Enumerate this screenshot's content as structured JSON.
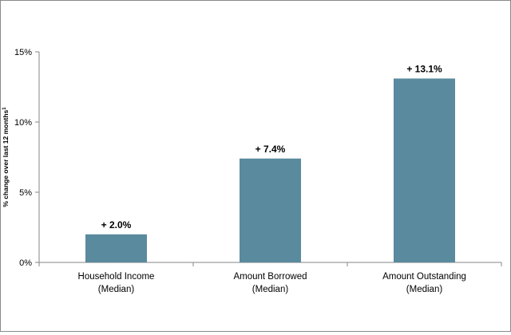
{
  "chart_data": {
    "type": "bar",
    "categories": [
      [
        "Household Income",
        "(Median)"
      ],
      [
        "Amount Borrowed",
        "(Median)"
      ],
      [
        "Amount Outstanding",
        "(Median)"
      ]
    ],
    "values": [
      2.0,
      7.4,
      13.1
    ],
    "data_labels": [
      "+ 2.0%",
      "+ 7.4%",
      "+ 13.1%"
    ],
    "ylabel": "% change over last 12 months",
    "ylabel_superscript": "1",
    "ylim": [
      0,
      15
    ],
    "yticks": [
      0,
      5,
      10,
      15
    ],
    "ytick_labels": [
      "0%",
      "5%",
      "10%",
      "15%"
    ],
    "bar_color": "#5a8a9e",
    "grid": false,
    "legend": "none"
  }
}
